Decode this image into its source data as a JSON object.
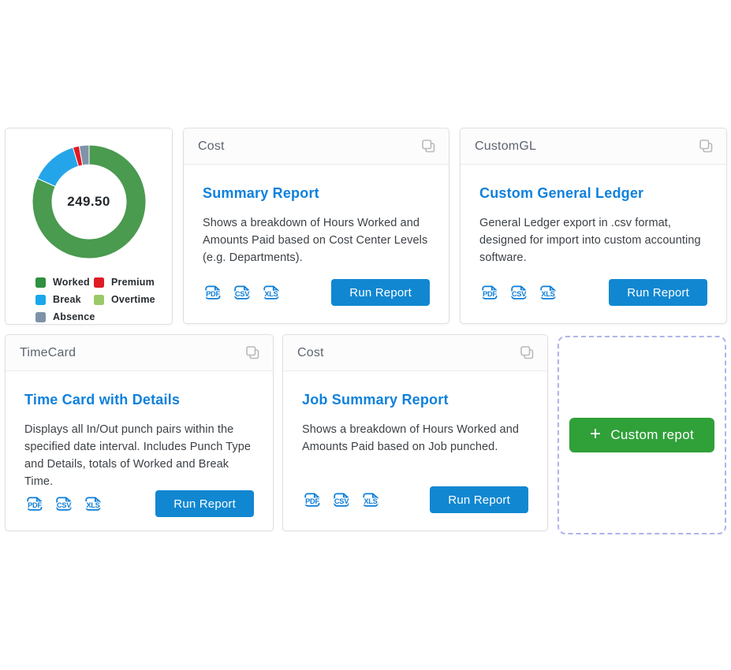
{
  "ui": {
    "run_report_label": "Run Report",
    "formats": [
      "PDF",
      "CSV",
      "XLS"
    ],
    "custom_report_button_label": "Custom repot",
    "plus_sign": "+",
    "colors": {
      "title_blue": "#0f81dc",
      "button_blue": "#1187d1",
      "file_icon_blue": "#0d7ed8",
      "custom_button_green": "#30a039",
      "dashed_border": "#b0b4ec",
      "header_text": "#5d6570",
      "body_text": "#3c4146"
    }
  },
  "chart_card": {
    "chart_data": {
      "type": "pie",
      "donut": true,
      "title": "",
      "center_label": "249.50",
      "total": 249.5,
      "legend_position": "bottom",
      "slices": [
        {
          "label": "Worked",
          "value": 204,
          "color": "#4a9a4f"
        },
        {
          "label": "Break",
          "value": 34,
          "color": "#25a5e9"
        },
        {
          "label": "Premium",
          "value": 4.5,
          "color": "#e01b24"
        },
        {
          "label": "Absence",
          "value": 7,
          "color": "#8093a9"
        },
        {
          "label": "Overtime",
          "value": 0,
          "color": "#9cc968"
        }
      ],
      "legend": [
        {
          "label": "Worked",
          "color": "#2f9040"
        },
        {
          "label": "Premium",
          "color": "#e01b24"
        },
        {
          "label": "Break",
          "color": "#1aa7ec"
        },
        {
          "label": "Overtime",
          "color": "#9cc968"
        },
        {
          "label": "Absence",
          "color": "#7e93a9"
        }
      ]
    }
  },
  "cards": [
    {
      "category": "Cost",
      "title": "Summary Report",
      "description": "Shows a breakdown of Hours Worked and Amounts Paid based on Cost Center Levels (e.g. Departments)."
    },
    {
      "category": "CustomGL",
      "title": "Custom General Ledger",
      "description": "General Ledger export in .csv format, designed for import into custom accounting software."
    },
    {
      "category": "TimeCard",
      "title": "Time Card with Details",
      "description": "Displays all In/Out punch pairs within the specified date interval. Includes Punch Type and Details, totals of Worked and Break Time."
    },
    {
      "category": "Cost",
      "title": "Job Summary Report",
      "description": "Shows a breakdown of Hours Worked and Amounts Paid based on Job punched."
    }
  ]
}
